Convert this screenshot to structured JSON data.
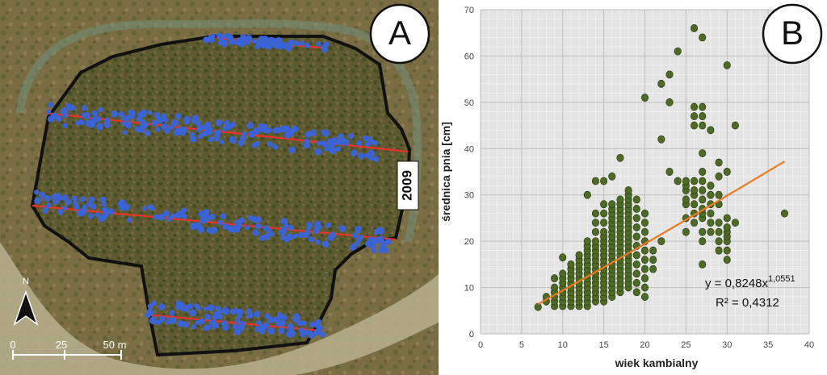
{
  "panel_a": {
    "label": "A",
    "year_label": "2009",
    "scale": {
      "ticks": [
        "0",
        "25",
        "50 m"
      ]
    },
    "north_symbol": "N",
    "colors": {
      "boundary": "#111111",
      "transect": "#e8332a",
      "tree": "#3a63d6"
    }
  },
  "chart_data": {
    "type": "scatter",
    "panel_label": "B",
    "title": "",
    "xlabel": "wiek kambialny",
    "ylabel": "średnica pnia [cm]",
    "xlim": [
      0,
      40
    ],
    "ylim": [
      0,
      70
    ],
    "xticks": [
      0,
      5,
      10,
      15,
      20,
      25,
      30,
      35,
      40
    ],
    "yticks": [
      0,
      10,
      20,
      30,
      40,
      50,
      60,
      70
    ],
    "grid": true,
    "point_color": "#4e6b25",
    "trend": {
      "type": "power",
      "a": 0.8248,
      "b": 1.0551,
      "x_range": [
        7,
        37
      ],
      "color": "#f07820"
    },
    "equation_label": {
      "main": "y = 0,8248x",
      "exponent": "1,0551",
      "r2": "R² = 0,4312"
    },
    "points": [
      [
        7,
        5.8
      ],
      [
        8,
        7
      ],
      [
        8,
        8
      ],
      [
        9,
        6
      ],
      [
        9,
        7
      ],
      [
        9,
        8
      ],
      [
        9,
        9
      ],
      [
        9,
        10
      ],
      [
        9,
        12
      ],
      [
        10,
        6
      ],
      [
        10,
        7
      ],
      [
        10,
        8
      ],
      [
        10,
        9
      ],
      [
        10,
        10
      ],
      [
        10,
        11
      ],
      [
        10,
        12
      ],
      [
        10,
        13
      ],
      [
        10,
        16.5
      ],
      [
        11,
        6
      ],
      [
        11,
        7
      ],
      [
        11,
        8
      ],
      [
        11,
        9
      ],
      [
        11,
        10
      ],
      [
        11,
        11
      ],
      [
        11,
        12
      ],
      [
        11,
        13
      ],
      [
        11,
        14
      ],
      [
        11,
        15
      ],
      [
        12,
        6
      ],
      [
        12,
        7
      ],
      [
        12,
        8
      ],
      [
        12,
        9
      ],
      [
        12,
        10
      ],
      [
        12,
        11
      ],
      [
        12,
        12
      ],
      [
        12,
        13
      ],
      [
        12,
        14
      ],
      [
        12,
        15
      ],
      [
        12,
        16
      ],
      [
        12,
        17
      ],
      [
        13,
        6
      ],
      [
        13,
        7
      ],
      [
        13,
        8
      ],
      [
        13,
        9
      ],
      [
        13,
        10
      ],
      [
        13,
        11
      ],
      [
        13,
        12
      ],
      [
        13,
        13
      ],
      [
        13,
        14
      ],
      [
        13,
        15
      ],
      [
        13,
        16
      ],
      [
        13,
        17
      ],
      [
        13,
        18
      ],
      [
        13,
        19
      ],
      [
        13,
        20
      ],
      [
        13,
        30
      ],
      [
        14,
        7
      ],
      [
        14,
        8
      ],
      [
        14,
        9
      ],
      [
        14,
        10
      ],
      [
        14,
        11
      ],
      [
        14,
        12
      ],
      [
        14,
        13
      ],
      [
        14,
        14
      ],
      [
        14,
        15
      ],
      [
        14,
        16
      ],
      [
        14,
        17
      ],
      [
        14,
        18
      ],
      [
        14,
        19
      ],
      [
        14,
        20
      ],
      [
        14,
        22
      ],
      [
        14,
        24
      ],
      [
        14,
        26
      ],
      [
        14,
        33
      ],
      [
        15,
        7
      ],
      [
        15,
        8
      ],
      [
        15,
        9
      ],
      [
        15,
        10
      ],
      [
        15,
        11
      ],
      [
        15,
        12
      ],
      [
        15,
        13
      ],
      [
        15,
        14
      ],
      [
        15,
        15
      ],
      [
        15,
        16
      ],
      [
        15,
        17
      ],
      [
        15,
        18
      ],
      [
        15,
        19
      ],
      [
        15,
        20
      ],
      [
        15,
        21
      ],
      [
        15,
        22
      ],
      [
        15,
        24
      ],
      [
        15,
        26
      ],
      [
        15,
        28
      ],
      [
        15,
        33
      ],
      [
        16,
        8
      ],
      [
        16,
        9
      ],
      [
        16,
        10
      ],
      [
        16,
        11
      ],
      [
        16,
        12
      ],
      [
        16,
        13
      ],
      [
        16,
        14
      ],
      [
        16,
        15
      ],
      [
        16,
        16
      ],
      [
        16,
        17
      ],
      [
        16,
        18
      ],
      [
        16,
        19
      ],
      [
        16,
        20
      ],
      [
        16,
        21
      ],
      [
        16,
        22
      ],
      [
        16,
        23
      ],
      [
        16,
        24
      ],
      [
        16,
        25
      ],
      [
        16,
        26
      ],
      [
        16,
        27
      ],
      [
        16,
        28
      ],
      [
        16,
        34
      ],
      [
        17,
        9
      ],
      [
        17,
        10
      ],
      [
        17,
        11
      ],
      [
        17,
        12
      ],
      [
        17,
        13
      ],
      [
        17,
        14
      ],
      [
        17,
        15
      ],
      [
        17,
        16
      ],
      [
        17,
        17
      ],
      [
        17,
        18
      ],
      [
        17,
        19
      ],
      [
        17,
        20
      ],
      [
        17,
        21
      ],
      [
        17,
        22
      ],
      [
        17,
        23
      ],
      [
        17,
        24
      ],
      [
        17,
        25
      ],
      [
        17,
        26
      ],
      [
        17,
        27
      ],
      [
        17,
        28
      ],
      [
        17,
        29
      ],
      [
        17,
        38
      ],
      [
        18,
        10
      ],
      [
        18,
        11
      ],
      [
        18,
        12
      ],
      [
        18,
        13
      ],
      [
        18,
        14
      ],
      [
        18,
        15
      ],
      [
        18,
        16
      ],
      [
        18,
        17
      ],
      [
        18,
        18
      ],
      [
        18,
        19
      ],
      [
        18,
        20
      ],
      [
        18,
        21
      ],
      [
        18,
        22
      ],
      [
        18,
        23
      ],
      [
        18,
        24
      ],
      [
        18,
        25
      ],
      [
        18,
        26
      ],
      [
        18,
        27
      ],
      [
        18,
        28
      ],
      [
        18,
        29
      ],
      [
        18,
        30
      ],
      [
        18,
        31
      ],
      [
        19,
        9
      ],
      [
        19,
        11
      ],
      [
        19,
        13
      ],
      [
        19,
        15
      ],
      [
        19,
        17
      ],
      [
        19,
        19
      ],
      [
        19,
        21
      ],
      [
        19,
        23
      ],
      [
        19,
        25
      ],
      [
        19,
        27
      ],
      [
        19,
        29
      ],
      [
        20,
        8
      ],
      [
        20,
        10
      ],
      [
        20,
        12
      ],
      [
        20,
        14
      ],
      [
        20,
        16
      ],
      [
        20,
        18
      ],
      [
        20,
        20
      ],
      [
        20,
        22
      ],
      [
        20,
        24
      ],
      [
        20,
        26
      ],
      [
        20,
        51
      ],
      [
        21,
        14
      ],
      [
        21,
        16
      ],
      [
        21,
        18
      ],
      [
        22,
        20
      ],
      [
        22,
        42
      ],
      [
        22,
        54
      ],
      [
        23,
        35
      ],
      [
        23,
        50
      ],
      [
        23,
        56
      ],
      [
        24,
        33
      ],
      [
        24,
        61
      ],
      [
        25,
        22
      ],
      [
        25,
        25
      ],
      [
        25,
        28
      ],
      [
        25,
        29
      ],
      [
        25,
        31
      ],
      [
        25,
        32
      ],
      [
        25,
        33
      ],
      [
        26,
        24
      ],
      [
        26,
        26
      ],
      [
        26,
        28
      ],
      [
        26,
        30
      ],
      [
        26,
        31
      ],
      [
        26,
        33
      ],
      [
        26,
        45
      ],
      [
        26,
        47
      ],
      [
        26,
        49
      ],
      [
        26,
        66
      ],
      [
        27,
        15
      ],
      [
        27,
        20
      ],
      [
        27,
        22
      ],
      [
        27,
        25
      ],
      [
        27,
        26
      ],
      [
        27,
        27
      ],
      [
        27,
        29
      ],
      [
        27,
        31
      ],
      [
        27,
        33
      ],
      [
        27,
        35
      ],
      [
        27,
        39
      ],
      [
        27,
        45
      ],
      [
        27,
        47
      ],
      [
        27,
        49
      ],
      [
        27,
        64
      ],
      [
        28,
        22
      ],
      [
        28,
        24
      ],
      [
        28,
        26
      ],
      [
        28,
        28
      ],
      [
        28,
        30
      ],
      [
        28,
        32
      ],
      [
        28,
        44
      ],
      [
        29,
        18
      ],
      [
        29,
        20
      ],
      [
        29,
        22
      ],
      [
        29,
        24
      ],
      [
        29,
        28
      ],
      [
        29,
        30
      ],
      [
        29,
        34
      ],
      [
        29,
        37
      ],
      [
        30,
        16
      ],
      [
        30,
        18
      ],
      [
        30,
        20
      ],
      [
        30,
        21
      ],
      [
        30,
        22
      ],
      [
        30,
        23
      ],
      [
        30,
        25
      ],
      [
        30,
        35
      ],
      [
        30,
        58
      ],
      [
        31,
        24
      ],
      [
        31,
        45
      ],
      [
        37,
        26
      ]
    ]
  }
}
